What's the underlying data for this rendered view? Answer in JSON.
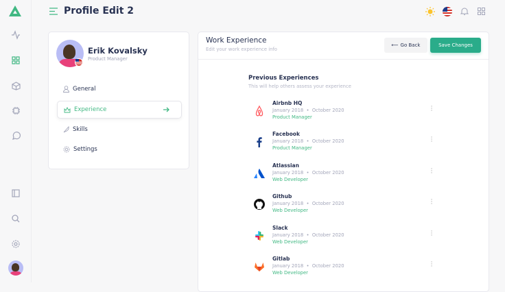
{
  "header": {
    "title": "Profile Edit 2"
  },
  "colors": {
    "accent": "#41b883",
    "save": "#2aac8a"
  },
  "profile": {
    "name": "Erik Kovalsky",
    "role": "Product Manager"
  },
  "menu": [
    {
      "label": "General",
      "icon": "user-icon"
    },
    {
      "label": "Experience",
      "icon": "crown-icon"
    },
    {
      "label": "Skills",
      "icon": "feather-icon"
    },
    {
      "label": "Settings",
      "icon": "gear-icon"
    }
  ],
  "panel": {
    "title": "Work Experience",
    "subtitle": "Edit your work experience info",
    "back_label": "Go Back",
    "save_label": "Save Changes"
  },
  "section": {
    "title": "Previous Experiences",
    "subtitle": "This will help others assess your experience"
  },
  "experiences": [
    {
      "company": "Airbnb HQ",
      "start": "January 2018",
      "end": "October 2020",
      "role": "Product Manager",
      "icon": "airbnb-icon"
    },
    {
      "company": "Facebook",
      "start": "January 2018",
      "end": "October 2020",
      "role": "Product Manager",
      "icon": "facebook-icon"
    },
    {
      "company": "Atlassian",
      "start": "January 2018",
      "end": "October 2020",
      "role": "Web Developer",
      "icon": "atlassian-icon"
    },
    {
      "company": "Github",
      "start": "January 2018",
      "end": "October 2020",
      "role": "Web Developer",
      "icon": "github-icon"
    },
    {
      "company": "Slack",
      "start": "January 2018",
      "end": "October 2020",
      "role": "Web Developer",
      "icon": "slack-icon"
    },
    {
      "company": "Gitlab",
      "start": "January 2018",
      "end": "October 2020",
      "role": "Web Developer",
      "icon": "gitlab-icon"
    }
  ]
}
